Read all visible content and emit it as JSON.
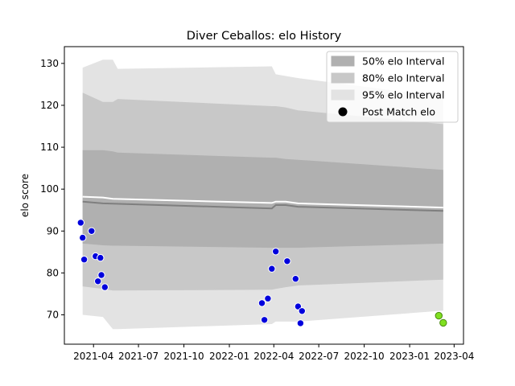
{
  "chart_data": {
    "type": "line",
    "title": "Diver Ceballos: elo History",
    "xlabel": "",
    "ylabel": "elo score",
    "xlim": [
      "2021-02-01",
      "2023-04-20"
    ],
    "ylim": [
      63.0,
      134.0
    ],
    "x_ticks": [
      "2021-04",
      "2021-07",
      "2021-10",
      "2022-01",
      "2022-04",
      "2022-07",
      "2022-10",
      "2023-01",
      "2023-04"
    ],
    "y_ticks": [
      70,
      80,
      90,
      100,
      110,
      120,
      130
    ],
    "grid": false,
    "legend_position": "top-right",
    "legend": [
      {
        "label": "50% elo Interval",
        "kind": "band",
        "color": "#b0b0b0"
      },
      {
        "label": "80% elo Interval",
        "kind": "band",
        "color": "#c8c8c8"
      },
      {
        "label": "95% elo Interval",
        "kind": "band",
        "color": "#e3e3e3"
      },
      {
        "label": "Post Match elo",
        "kind": "marker",
        "color": "#000000"
      }
    ],
    "bands": {
      "x": [
        "2021-03-10",
        "2021-04-20",
        "2021-05-10",
        "2021-05-20",
        "2022-03-28",
        "2022-04-05",
        "2022-04-25",
        "2022-05-20",
        "2023-03-10"
      ],
      "band95": {
        "lower": [
          70.0,
          69.5,
          66.6,
          66.6,
          67.8,
          68.4,
          68.4,
          68.4,
          71.0
        ],
        "upper": [
          129.0,
          130.9,
          130.9,
          128.7,
          129.3,
          127.4,
          127.0,
          126.5,
          122.0
        ]
      },
      "band80": {
        "lower": [
          76.8,
          76.2,
          75.8,
          75.8,
          76.0,
          76.2,
          76.6,
          77.0,
          78.4
        ],
        "upper": [
          123.0,
          120.8,
          120.8,
          121.5,
          119.8,
          119.8,
          119.5,
          118.8,
          115.5
        ]
      },
      "band50": {
        "lower": [
          87.0,
          86.6,
          86.5,
          86.5,
          86.0,
          86.0,
          86.0,
          86.0,
          87.0
        ],
        "upper": [
          109.3,
          109.3,
          109.0,
          108.7,
          107.5,
          107.5,
          107.2,
          107.0,
          104.6
        ]
      }
    },
    "series": [
      {
        "kind": "mean_line",
        "color": "#7f7f7f",
        "x": [
          "2021-03-10",
          "2021-04-20",
          "2022-03-28",
          "2022-04-05",
          "2022-04-25",
          "2022-05-20",
          "2023-03-10"
        ],
        "values": [
          97.0,
          96.6,
          95.4,
          96.2,
          96.2,
          95.8,
          94.8
        ]
      },
      {
        "kind": "upper_line",
        "color": "#ffffff",
        "x": [
          "2021-03-10",
          "2021-04-20",
          "2021-05-10",
          "2022-03-28",
          "2022-04-05",
          "2022-04-25",
          "2022-05-20",
          "2023-03-10"
        ],
        "values": [
          98.2,
          98.0,
          97.7,
          96.7,
          97.0,
          97.0,
          96.6,
          95.6
        ]
      },
      {
        "name": "Post Match elo",
        "kind": "points",
        "color": "#0000dd",
        "edge": "#ffffff",
        "x": [
          "2021-03-06",
          "2021-03-10",
          "2021-03-13",
          "2021-03-28",
          "2021-04-05",
          "2021-04-10",
          "2021-04-15",
          "2021-04-17",
          "2021-04-24",
          "2022-03-08",
          "2022-03-13",
          "2022-03-20",
          "2022-03-28",
          "2022-04-05",
          "2022-04-28",
          "2022-05-15",
          "2022-05-20",
          "2022-05-25",
          "2022-05-28"
        ],
        "values": [
          92.0,
          88.4,
          83.2,
          90.0,
          84.0,
          78.0,
          83.6,
          79.5,
          76.6,
          72.8,
          68.8,
          73.9,
          81.0,
          85.1,
          82.8,
          78.6,
          72.0,
          68.0,
          70.9
        ]
      },
      {
        "name": "Post Match elo",
        "kind": "points",
        "color": "#80e020",
        "edge": "#4a8a10",
        "x": [
          "2023-03-01",
          "2023-03-10"
        ],
        "values": [
          69.8,
          68.1
        ]
      }
    ]
  }
}
